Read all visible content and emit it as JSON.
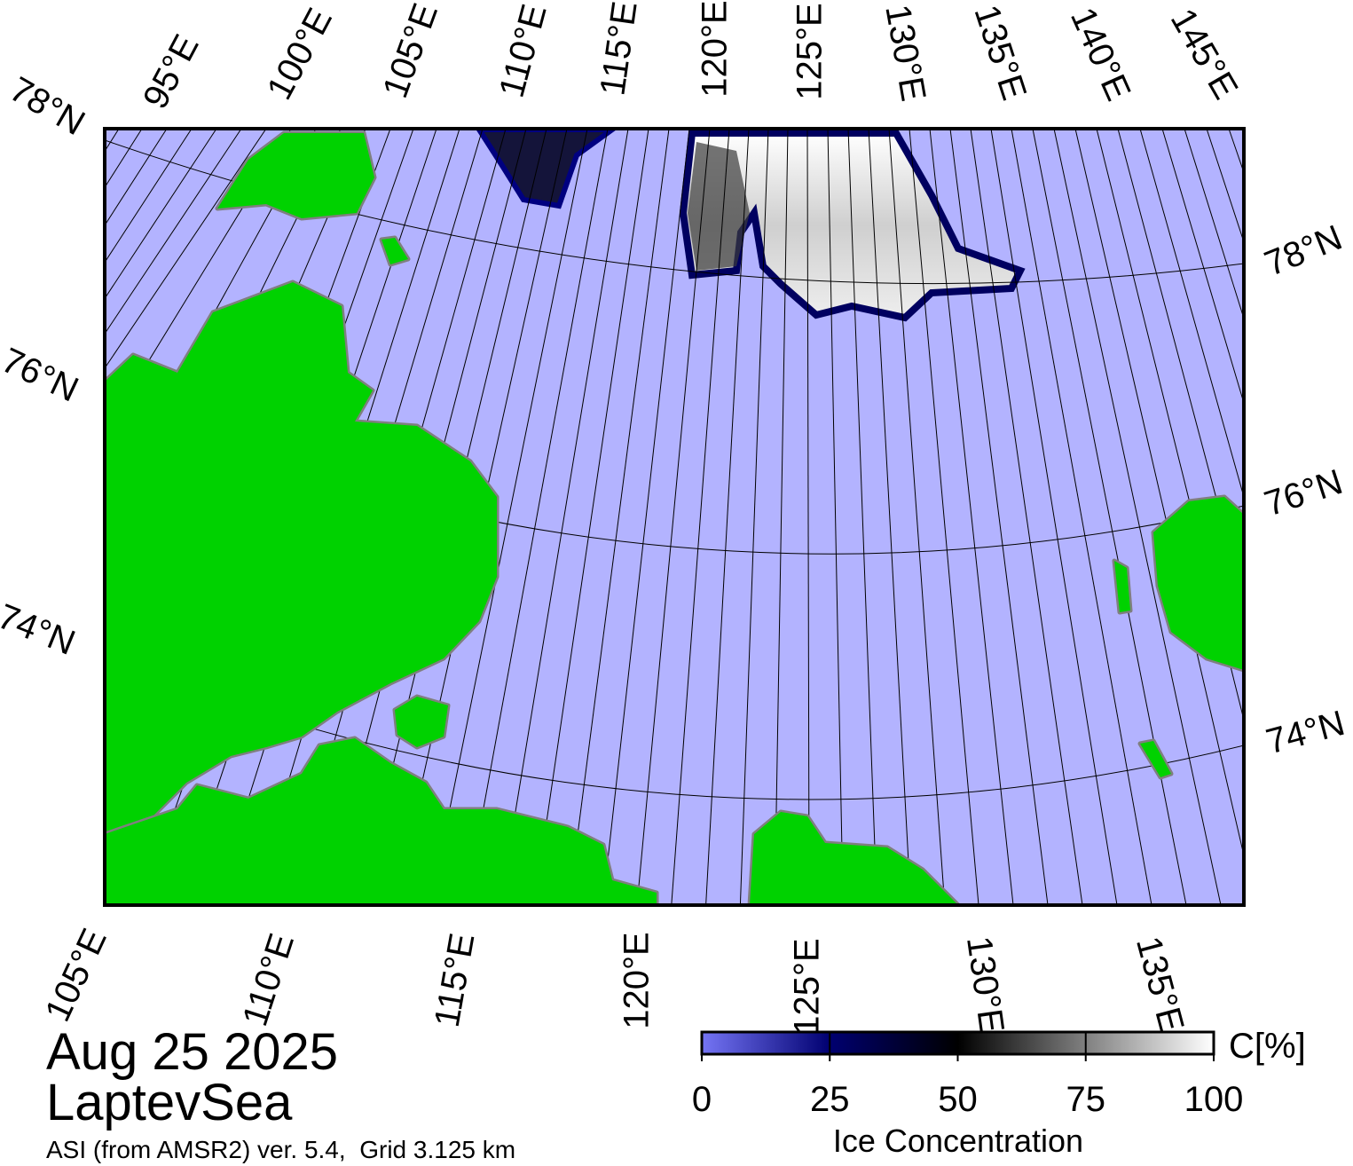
{
  "map": {
    "region": "LaptevSea",
    "date": "Aug 25 2025",
    "source": "ASI (from AMSR2) ver. 5.4,  Grid 3.125 km",
    "lat_labels_left": [
      "78°N",
      "76°N",
      "74°N"
    ],
    "lat_labels_right": [
      "78°N",
      "76°N",
      "74°N"
    ],
    "lon_labels_top": [
      "95°E",
      "100°E",
      "105°E",
      "110°E",
      "115°E",
      "120°E",
      "125°E",
      "130°E",
      "135°E",
      "140°E",
      "145°E"
    ],
    "lon_labels_bottom": [
      "105°E",
      "110°E",
      "115°E",
      "120°E",
      "125°E",
      "130°E",
      "135°E"
    ],
    "ocean_color": "#b3b3ff",
    "land_color": "#00d200"
  },
  "colorbar": {
    "title": "Ice Concentration",
    "unit": "C[%]",
    "lim": [
      0,
      100
    ],
    "ticks": [
      0,
      25,
      50,
      75,
      100
    ],
    "colors": [
      "#7575f5",
      "#000070",
      "#000000",
      "#808080",
      "#ffffff"
    ]
  }
}
